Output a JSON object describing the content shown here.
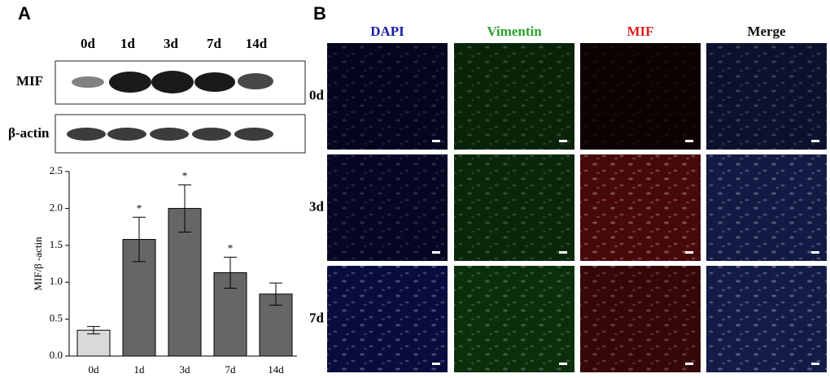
{
  "panels": {
    "a": "A",
    "b": "B"
  },
  "blot": {
    "lanes": [
      "0d",
      "1d",
      "3d",
      "7d",
      "14d"
    ],
    "rows": [
      "MIF",
      "β-actin"
    ]
  },
  "if_grid": {
    "columns": [
      "DAPI",
      "Vimentin",
      "MIF",
      "Merge"
    ],
    "rows": [
      "0d",
      "3d",
      "7d"
    ]
  },
  "chart_data": {
    "type": "bar",
    "ylabel": "MIF/β -actin",
    "categories": [
      "0d",
      "1d",
      "3d",
      "7d",
      "14d"
    ],
    "values": [
      0.35,
      1.58,
      2.0,
      1.13,
      0.84
    ],
    "errors": [
      0.05,
      0.3,
      0.32,
      0.21,
      0.15
    ],
    "annotations": [
      null,
      "*",
      "*",
      "*",
      null
    ],
    "colors": [
      "#d9d9d9",
      "#666666",
      "#666666",
      "#666666",
      "#666666"
    ],
    "ylim": [
      0,
      2.5
    ],
    "yticks": [
      {
        "value": 0,
        "label": "0.0"
      },
      {
        "value": 0.5,
        "label": "0.5"
      },
      {
        "value": 1,
        "label": "1.0"
      },
      {
        "value": 1.5,
        "label": "1.5"
      },
      {
        "value": 2,
        "label": "2.0"
      },
      {
        "value": 2.5,
        "label": "2.5"
      }
    ]
  }
}
